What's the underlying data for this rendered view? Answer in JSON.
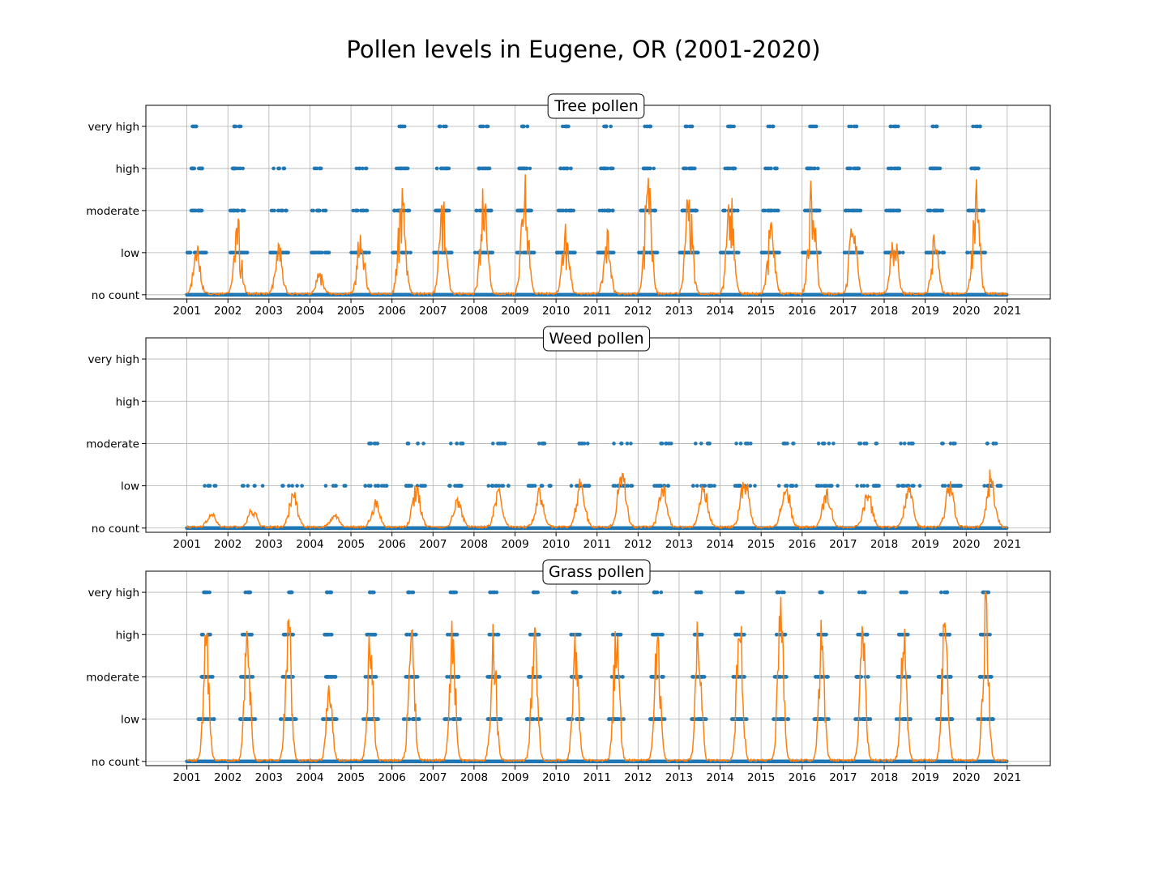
{
  "figure": {
    "title": "Pollen levels in Eugene, OR (2001-2020)"
  },
  "colors": {
    "points": "#1f77b4",
    "line": "#ff7f0e",
    "grid": "#b0b0b0",
    "axes": "#000000"
  },
  "chart_data": [
    {
      "type": "scatter",
      "title": "Tree pollen",
      "xlabel": "",
      "ylabel": "",
      "x_range": [
        2000.0,
        2022.05
      ],
      "x_ticks": [
        "2001",
        "2002",
        "2003",
        "2004",
        "2005",
        "2006",
        "2007",
        "2008",
        "2009",
        "2010",
        "2011",
        "2012",
        "2013",
        "2014",
        "2015",
        "2016",
        "2017",
        "2018",
        "2019",
        "2020",
        "2021"
      ],
      "y_categories": [
        "no count",
        "low",
        "moderate",
        "high",
        "very high"
      ],
      "y_range": [
        -0.1,
        4.5
      ],
      "grid": true,
      "series": [
        {
          "kind": "points",
          "peak_level": [
            4,
            4,
            3,
            3,
            3,
            4,
            4,
            4,
            4,
            4,
            4,
            4,
            4,
            4,
            4,
            4,
            4,
            4,
            4,
            4
          ],
          "season_start": 0.08,
          "season_end": 0.5
        },
        {
          "kind": "line",
          "peak_value": [
            1.1,
            1.7,
            1.2,
            0.6,
            1.6,
            2.8,
            2.4,
            2.5,
            2.9,
            1.6,
            1.5,
            2.9,
            2.6,
            2.6,
            1.7,
            2.7,
            1.9,
            1.6,
            1.4,
            2.6
          ]
        }
      ]
    },
    {
      "type": "scatter",
      "title": "Weed pollen",
      "xlabel": "",
      "ylabel": "",
      "x_range": [
        2000.0,
        2022.05
      ],
      "x_ticks": [
        "2001",
        "2002",
        "2003",
        "2004",
        "2005",
        "2006",
        "2007",
        "2008",
        "2009",
        "2010",
        "2011",
        "2012",
        "2013",
        "2014",
        "2015",
        "2016",
        "2017",
        "2018",
        "2019",
        "2020",
        "2021"
      ],
      "y_categories": [
        "no count",
        "low",
        "moderate",
        "high",
        "very high"
      ],
      "y_range": [
        -0.1,
        4.5
      ],
      "grid": true,
      "series": [
        {
          "kind": "points",
          "peak_level": [
            1,
            1,
            1,
            1,
            2,
            2,
            2,
            2,
            2,
            2,
            2,
            2,
            2,
            2,
            2,
            2,
            2,
            2,
            2,
            2
          ],
          "season_start": 0.35,
          "season_end": 0.85
        },
        {
          "kind": "line",
          "peak_value": [
            0.35,
            0.45,
            0.85,
            0.3,
            0.6,
            1.0,
            0.7,
            0.9,
            0.9,
            1.1,
            1.4,
            1.0,
            1.0,
            1.3,
            1.1,
            0.9,
            0.9,
            1.0,
            1.1,
            1.3
          ]
        }
      ]
    },
    {
      "type": "scatter",
      "title": "Grass pollen",
      "xlabel": "",
      "ylabel": "",
      "x_range": [
        2000.0,
        2022.05
      ],
      "x_ticks": [
        "2001",
        "2002",
        "2003",
        "2004",
        "2005",
        "2006",
        "2007",
        "2008",
        "2009",
        "2010",
        "2011",
        "2012",
        "2013",
        "2014",
        "2015",
        "2016",
        "2017",
        "2018",
        "2019",
        "2020",
        "2021"
      ],
      "y_categories": [
        "no count",
        "low",
        "moderate",
        "high",
        "very high"
      ],
      "y_range": [
        -0.1,
        4.5
      ],
      "grid": true,
      "series": [
        {
          "kind": "points",
          "peak_level": [
            4,
            4,
            4,
            4,
            4,
            4,
            4,
            4,
            4,
            4,
            4,
            4,
            4,
            4,
            4,
            4,
            4,
            4,
            4,
            4
          ],
          "season_start": 0.3,
          "season_end": 0.65
        },
        {
          "kind": "line",
          "peak_value": [
            3.0,
            3.2,
            3.7,
            2.0,
            3.1,
            3.8,
            3.3,
            3.1,
            3.4,
            3.2,
            3.6,
            3.1,
            3.6,
            3.9,
            3.8,
            3.2,
            3.2,
            3.3,
            3.4,
            3.7
          ]
        }
      ]
    }
  ]
}
